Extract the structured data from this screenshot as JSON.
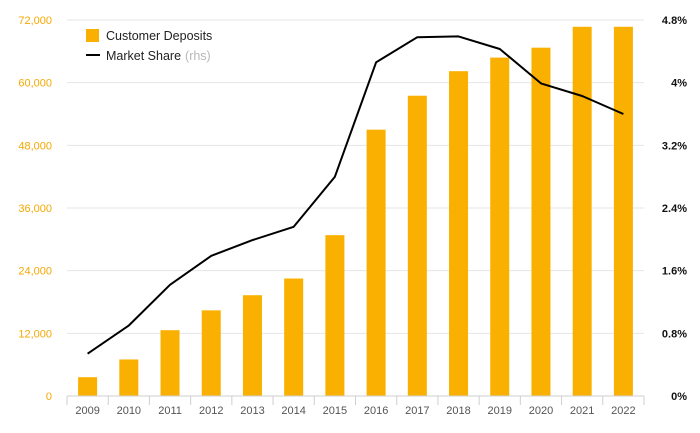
{
  "chart_data": {
    "type": "bar+line",
    "title": "",
    "categories": [
      "2009",
      "2010",
      "2011",
      "2012",
      "2013",
      "2014",
      "2015",
      "2016",
      "2017",
      "2018",
      "2019",
      "2020",
      "2021",
      "2022"
    ],
    "series": [
      {
        "name": "Customer Deposits",
        "type": "bar",
        "axis": "left",
        "color": "#f9b000",
        "values": [
          3600,
          7000,
          12600,
          16400,
          19300,
          22500,
          30800,
          51000,
          57500,
          62200,
          64800,
          66700,
          70700,
          70700
        ]
      },
      {
        "name": "Market Share",
        "type": "line",
        "axis": "right",
        "color": "#000000",
        "values": [
          0.54,
          0.9,
          1.42,
          1.79,
          1.99,
          2.16,
          2.8,
          4.26,
          4.58,
          4.59,
          4.43,
          3.99,
          3.83,
          3.6
        ]
      }
    ],
    "left_axis": {
      "ylim": [
        0,
        72000
      ],
      "ticks": [
        0,
        12000,
        24000,
        36000,
        48000,
        60000,
        72000
      ],
      "tick_labels": [
        "0",
        "12,000",
        "24,000",
        "36,000",
        "48,000",
        "60,000",
        "72,000"
      ],
      "color": "#f5a800"
    },
    "right_axis": {
      "ylim": [
        0,
        4.8
      ],
      "ticks": [
        0,
        0.8,
        1.6,
        2.4,
        3.2,
        4.0,
        4.8
      ],
      "tick_labels": [
        "0%",
        "0.8%",
        "1.6%",
        "2.4%",
        "3.2%",
        "4%",
        "4.8%"
      ],
      "color": "#111111"
    },
    "legend": {
      "position": "top-left",
      "items": [
        {
          "label": "Customer Deposits",
          "suffix": "",
          "marker": "square",
          "color": "#f9b000"
        },
        {
          "label": "Market Share",
          "suffix": "(rhs)",
          "marker": "line",
          "color": "#000000"
        }
      ]
    },
    "grid": true
  }
}
